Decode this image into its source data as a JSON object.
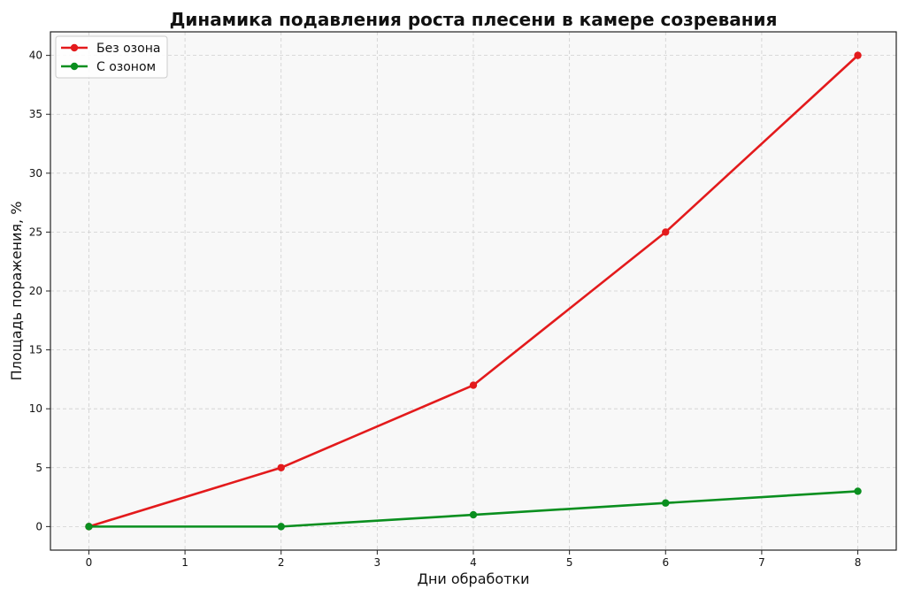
{
  "chart_data": {
    "type": "line",
    "title": "Динамика подавления роста плесени в камере созревания",
    "xlabel": "Дни обработки",
    "ylabel": "Площадь поражения, %",
    "xlim": [
      -0.4,
      8.4
    ],
    "ylim": [
      -2,
      42
    ],
    "xticks": [
      0,
      1,
      2,
      3,
      4,
      5,
      6,
      7,
      8
    ],
    "yticks": [
      0,
      5,
      10,
      15,
      20,
      25,
      30,
      35,
      40
    ],
    "grid": true,
    "legend_position": "top-left",
    "series": [
      {
        "name": "Без озона",
        "color": "#e31a1c",
        "marker": "circle",
        "x": [
          0,
          2,
          4,
          6,
          8
        ],
        "y": [
          0,
          5,
          12,
          25,
          40
        ]
      },
      {
        "name": "С озоном",
        "color": "#0a8f1f",
        "marker": "circle",
        "x": [
          0,
          2,
          4,
          6,
          8
        ],
        "y": [
          0,
          0,
          1,
          2,
          3
        ]
      }
    ]
  }
}
